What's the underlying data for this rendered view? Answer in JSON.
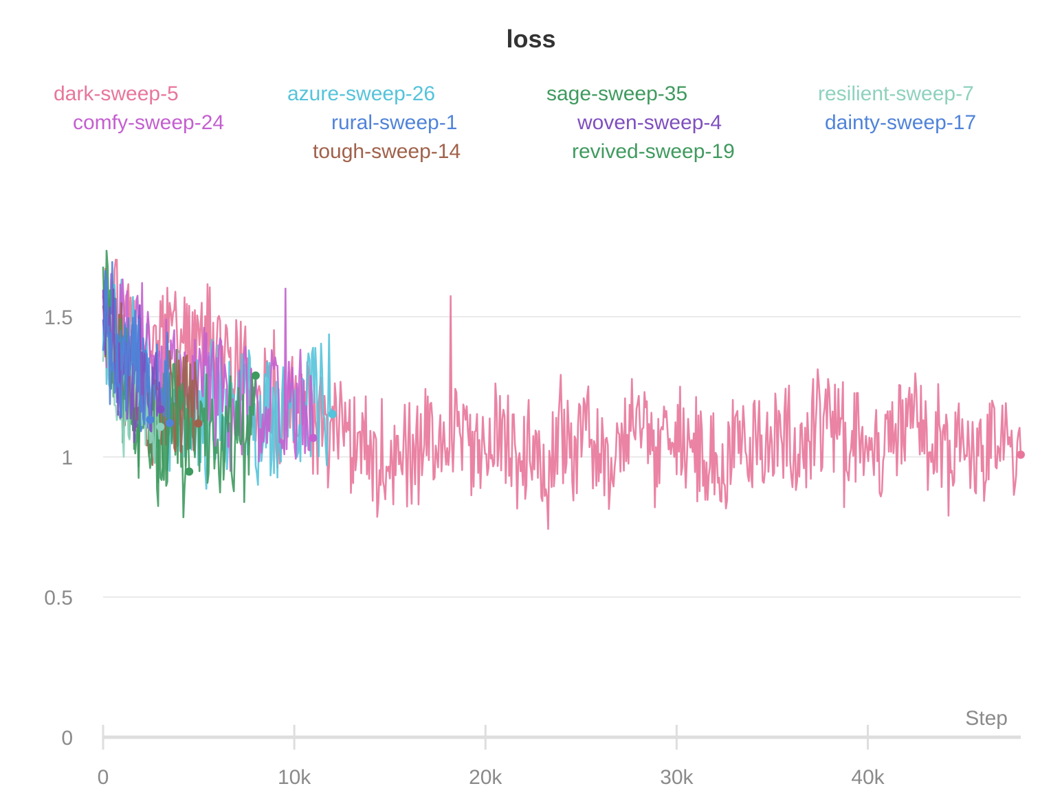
{
  "chart_data": {
    "type": "line",
    "title": "loss",
    "xlabel": "Step",
    "ylabel": "",
    "xlim": [
      0,
      48000
    ],
    "ylim": [
      0,
      2.0
    ],
    "x_ticks": [
      0,
      10000,
      20000,
      30000,
      40000
    ],
    "x_tick_labels": [
      "0",
      "10k",
      "20k",
      "30k",
      "40k"
    ],
    "y_ticks": [
      0,
      0.5,
      1,
      1.5
    ],
    "y_tick_labels": [
      "0",
      "0.5",
      "1",
      "1.5"
    ],
    "grid": true,
    "legend_position": "top",
    "series": [
      {
        "name": "dark-sweep-5",
        "color": "#e8769a",
        "x_end": 48000,
        "start": 1.5,
        "end": 1.05,
        "noise": 0.18,
        "seed": 5
      },
      {
        "name": "azure-sweep-26",
        "color": "#55c3da",
        "x_end": 12000,
        "start": 1.5,
        "end": 1.15,
        "noise": 0.22,
        "seed": 26
      },
      {
        "name": "sage-sweep-35",
        "color": "#3f9a5f",
        "x_end": 8000,
        "start": 1.55,
        "end": 1.1,
        "noise": 0.22,
        "seed": 35
      },
      {
        "name": "resilient-sweep-7",
        "color": "#8ed1bd",
        "x_end": 3000,
        "start": 1.45,
        "end": 1.2,
        "noise": 0.15,
        "seed": 7
      },
      {
        "name": "comfy-sweep-24",
        "color": "#c45fd0",
        "x_end": 11000,
        "start": 1.5,
        "end": 1.25,
        "noise": 0.18,
        "seed": 24
      },
      {
        "name": "rural-sweep-1",
        "color": "#4f83d9",
        "x_end": 3500,
        "start": 1.55,
        "end": 1.25,
        "noise": 0.2,
        "seed": 1
      },
      {
        "name": "woven-sweep-4",
        "color": "#7f4fbf",
        "x_end": 3000,
        "start": 1.55,
        "end": 1.3,
        "noise": 0.18,
        "seed": 4
      },
      {
        "name": "dainty-sweep-17",
        "color": "#4f83d9",
        "x_end": 2500,
        "start": 1.5,
        "end": 1.3,
        "noise": 0.18,
        "seed": 17
      },
      {
        "name": "tough-sweep-14",
        "color": "#a0614a",
        "x_end": 5000,
        "start": 1.5,
        "end": 1.2,
        "noise": 0.2,
        "seed": 14
      },
      {
        "name": "revived-sweep-19",
        "color": "#3f9a5f",
        "x_end": 4500,
        "start": 1.6,
        "end": 1.15,
        "noise": 0.22,
        "seed": 19
      }
    ]
  }
}
